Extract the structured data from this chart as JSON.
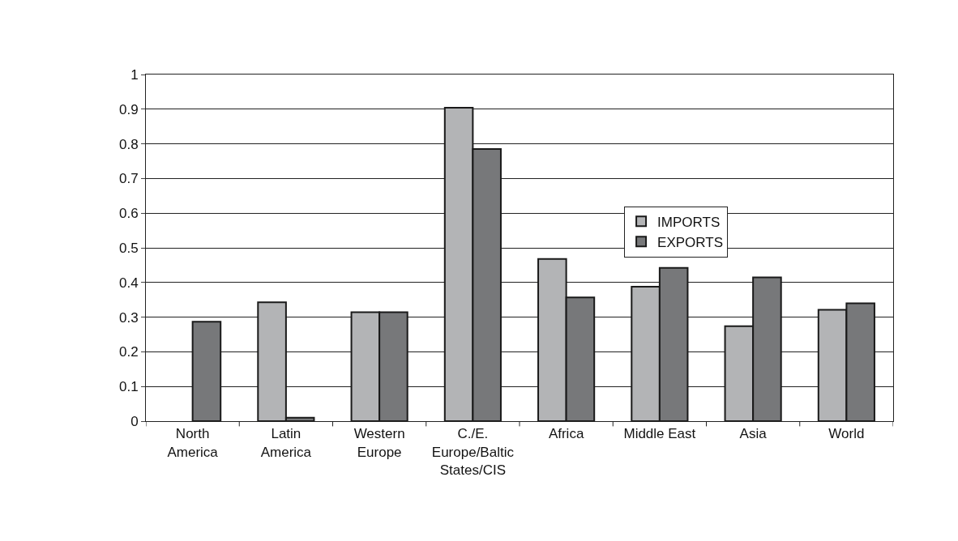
{
  "chart_data": {
    "type": "bar",
    "categories": [
      "North America",
      "Latin America",
      "Western Europe",
      "C./E. Europe/Baltic States/CIS",
      "Africa",
      "Middle East",
      "Asia",
      "World"
    ],
    "series": [
      {
        "name": "IMPORTS",
        "color": "#b3b4b6",
        "values": [
          null,
          0.343,
          0.314,
          0.904,
          0.468,
          0.388,
          0.274,
          0.321
        ]
      },
      {
        "name": "EXPORTS",
        "color": "#77787a",
        "values": [
          0.287,
          0.01,
          0.314,
          0.785,
          0.357,
          0.442,
          0.415,
          0.34
        ]
      }
    ],
    "ylim": [
      0,
      1
    ],
    "yticks": [
      0,
      0.1,
      0.2,
      0.3,
      0.4,
      0.5,
      0.6,
      0.7,
      0.8,
      0.9,
      1
    ],
    "grid": "y",
    "legend": "right"
  }
}
